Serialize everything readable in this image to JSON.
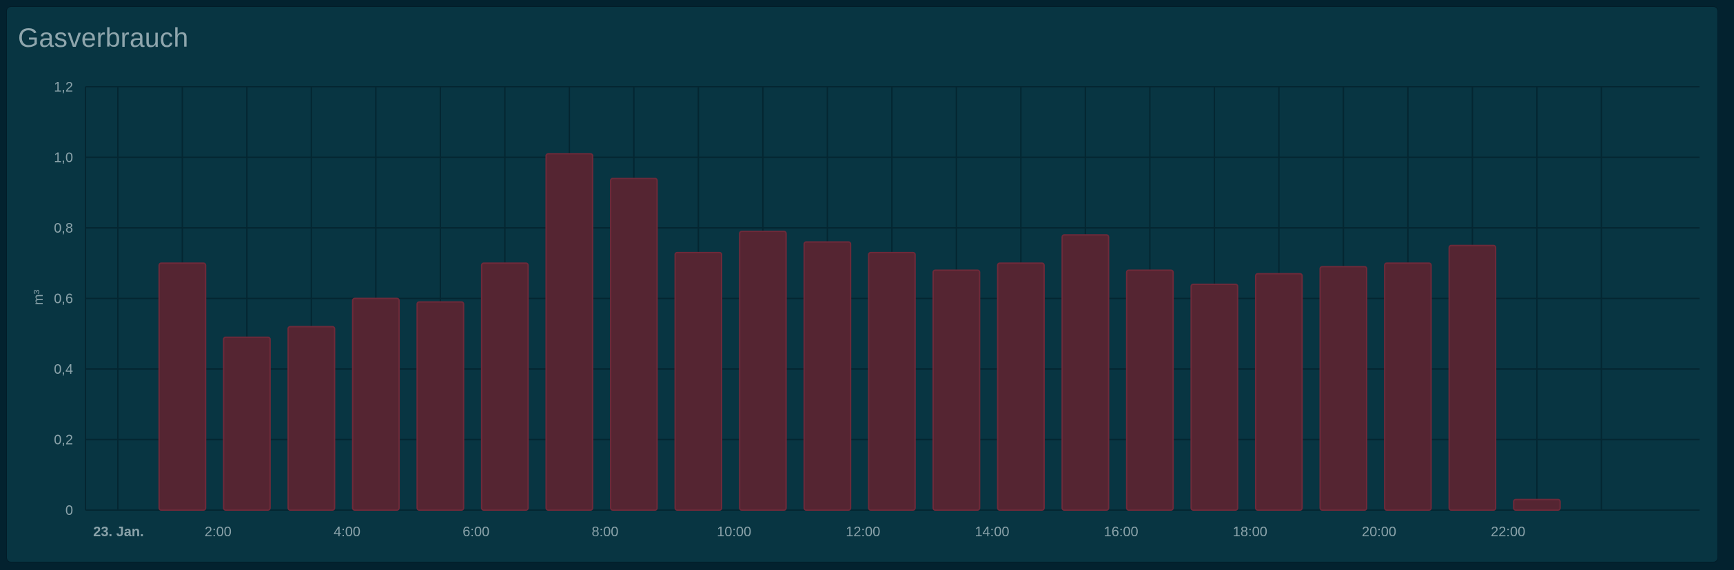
{
  "card": {
    "title": "Gasverbrauch"
  },
  "colors": {
    "background": "#03222f",
    "card": "#083542",
    "bar_fill": "#552532",
    "bar_stroke": "#6e2a3a",
    "grid": "#042631",
    "text": "#8aa2a9"
  },
  "chart_data": {
    "type": "bar",
    "title": "Gasverbrauch",
    "xlabel": "",
    "ylabel": "m³",
    "ylim": [
      0,
      1.2
    ],
    "y_ticks": [
      "0",
      "0,2",
      "0,4",
      "0,6",
      "0,8",
      "1,0",
      "1,2"
    ],
    "x_ticks": [
      {
        "label": "23. Jan.",
        "hour": 0,
        "bold": true
      },
      {
        "label": "2:00",
        "hour": 2
      },
      {
        "label": "4:00",
        "hour": 4
      },
      {
        "label": "6:00",
        "hour": 6
      },
      {
        "label": "8:00",
        "hour": 8
      },
      {
        "label": "10:00",
        "hour": 10
      },
      {
        "label": "12:00",
        "hour": 12
      },
      {
        "label": "14:00",
        "hour": 14
      },
      {
        "label": "16:00",
        "hour": 16
      },
      {
        "label": "18:00",
        "hour": 18
      },
      {
        "label": "20:00",
        "hour": 20
      },
      {
        "label": "22:00",
        "hour": 22
      }
    ],
    "x_range_hours": [
      0,
      24
    ],
    "grid": true,
    "bars": [
      {
        "hour": 1,
        "value": 0.7
      },
      {
        "hour": 2,
        "value": 0.49
      },
      {
        "hour": 3,
        "value": 0.52
      },
      {
        "hour": 4,
        "value": 0.6
      },
      {
        "hour": 5,
        "value": 0.59
      },
      {
        "hour": 6,
        "value": 0.7
      },
      {
        "hour": 7,
        "value": 1.01
      },
      {
        "hour": 8,
        "value": 0.94
      },
      {
        "hour": 9,
        "value": 0.73
      },
      {
        "hour": 10,
        "value": 0.79
      },
      {
        "hour": 11,
        "value": 0.76
      },
      {
        "hour": 12,
        "value": 0.73
      },
      {
        "hour": 13,
        "value": 0.68
      },
      {
        "hour": 14,
        "value": 0.7
      },
      {
        "hour": 15,
        "value": 0.78
      },
      {
        "hour": 16,
        "value": 0.68
      },
      {
        "hour": 17,
        "value": 0.64
      },
      {
        "hour": 18,
        "value": 0.67
      },
      {
        "hour": 19,
        "value": 0.69
      },
      {
        "hour": 20,
        "value": 0.7
      },
      {
        "hour": 21,
        "value": 0.75
      },
      {
        "hour": 22,
        "value": 0.03
      }
    ]
  }
}
